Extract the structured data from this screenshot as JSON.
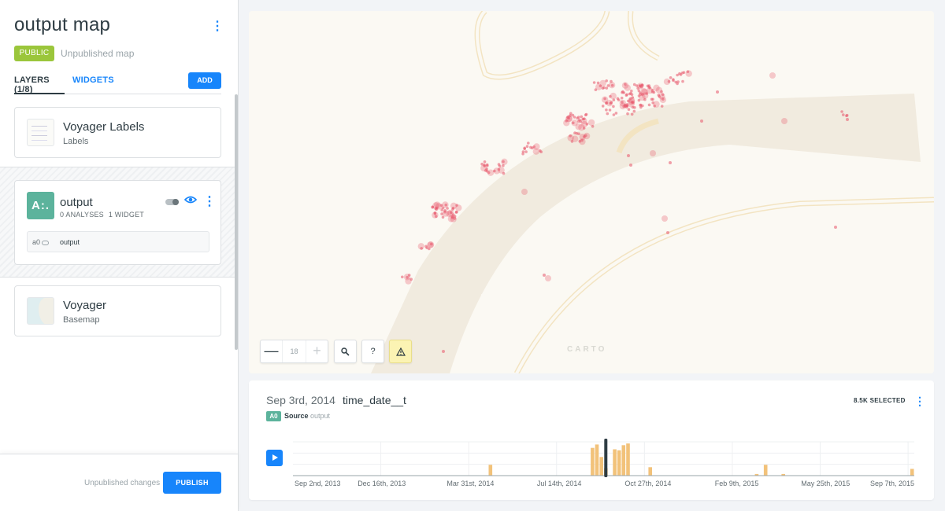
{
  "sidebar": {
    "title": "output map",
    "visibility_badge": "PUBLIC",
    "status_text": "Unpublished map",
    "tabs": {
      "layers": "LAYERS (1/8)",
      "widgets": "WIDGETS"
    },
    "add_button": "ADD",
    "layers": [
      {
        "name": "Voyager Labels",
        "subtitle": "Labels"
      },
      {
        "name": "output",
        "icon_text": "A:.",
        "analyses": "0 ANALYSES",
        "widgets": "1 WIDGET",
        "analysis": {
          "id": "a0",
          "label": "output"
        }
      },
      {
        "name": "Voyager",
        "subtitle": "Basemap"
      }
    ],
    "footer": {
      "changes_text": "Unpublished changes",
      "publish_button": "PUBLISH"
    }
  },
  "map": {
    "zoom_level": "18",
    "zoom_minus": "—",
    "zoom_plus": "+",
    "search_icon": "search-icon",
    "help_label": "?",
    "warning_icon": "warning-icon",
    "attribution_logo": "CARTO",
    "point_color": "#e8566a"
  },
  "widget": {
    "current_date": "Sep 3rd, 2014",
    "column": "time_date__t",
    "source_badge": "A0",
    "source_label": "Source",
    "source_name": "output",
    "selected_count": "8.5K SELECTED",
    "play_icon": "play-icon",
    "bar_color": "#f2c27a",
    "chart_data": {
      "type": "bar",
      "x_tick_labels": [
        "Sep 2nd, 2013",
        "Dec 16th, 2013",
        "Mar 31st, 2014",
        "Jul 14th, 2014",
        "Oct 27th, 2014",
        "Feb 9th, 2015",
        "May 25th, 2015",
        "Sep 7th, 2015"
      ],
      "bins": 140,
      "bars": [
        {
          "bin": 44,
          "value": 0.32
        },
        {
          "bin": 67,
          "value": 0.82
        },
        {
          "bin": 68,
          "value": 0.92
        },
        {
          "bin": 69,
          "value": 0.55
        },
        {
          "bin": 70,
          "value": 0.22
        },
        {
          "bin": 72,
          "value": 0.78
        },
        {
          "bin": 73,
          "value": 0.75
        },
        {
          "bin": 74,
          "value": 0.9
        },
        {
          "bin": 75,
          "value": 0.95
        },
        {
          "bin": 80,
          "value": 0.25
        },
        {
          "bin": 104,
          "value": 0.05
        },
        {
          "bin": 106,
          "value": 0.32
        },
        {
          "bin": 110,
          "value": 0.05
        },
        {
          "bin": 139,
          "value": 0.2
        }
      ],
      "selected_bin": 70.5,
      "ylim": [
        0,
        1
      ]
    }
  }
}
